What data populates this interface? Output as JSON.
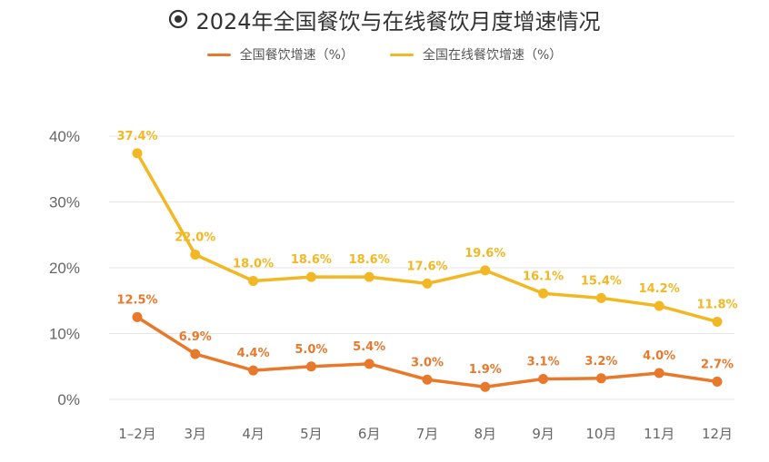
{
  "chart_data": {
    "type": "line",
    "title": "2024年全国餐饮与在线餐饮月度增速情况",
    "title_icon": "target-circle-icon",
    "categories": [
      "1–2月",
      "3月",
      "4月",
      "5月",
      "6月",
      "7月",
      "8月",
      "9月",
      "10月",
      "11月",
      "12月"
    ],
    "series": [
      {
        "name": "全国餐饮增速（%）",
        "color": "#e8782a",
        "values": [
          12.5,
          6.9,
          4.4,
          5.0,
          5.4,
          3.0,
          1.9,
          3.1,
          3.2,
          4.0,
          2.7
        ],
        "labels": [
          "12.5%",
          "6.9%",
          "4.4%",
          "5.0%",
          "5.4%",
          "3.0%",
          "1.9%",
          "3.1%",
          "3.2%",
          "4.0%",
          "2.7%"
        ]
      },
      {
        "name": "全国在线餐饮增速（%）",
        "color": "#f2b823",
        "values": [
          37.4,
          22.0,
          18.0,
          18.6,
          18.6,
          17.6,
          19.6,
          16.1,
          15.4,
          14.2,
          11.8
        ],
        "labels": [
          "37.4%",
          "22.0%",
          "18.0%",
          "18.6%",
          "18.6%",
          "17.6%",
          "19.6%",
          "16.1%",
          "15.4%",
          "14.2%",
          "11.8%"
        ]
      }
    ],
    "y_ticks": [
      "0%",
      "10%",
      "20%",
      "30%",
      "40%"
    ],
    "ylim": [
      0,
      40
    ],
    "grid": true,
    "legend_position": "top-center"
  }
}
